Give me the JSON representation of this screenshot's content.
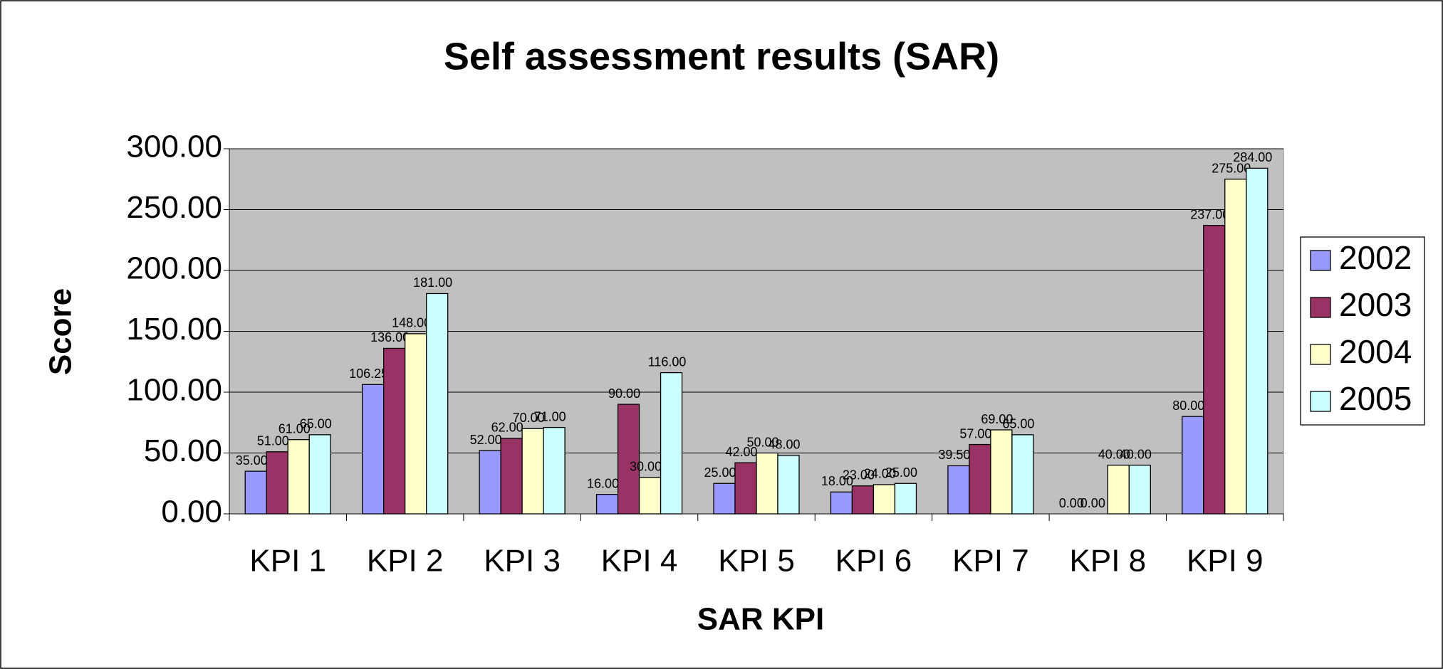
{
  "chart_data": {
    "type": "bar",
    "title": "Self assessment results (SAR)",
    "x_label": "SAR KPI",
    "y_label": "Score",
    "categories": [
      "KPI 1",
      "KPI 2",
      "KPI 3",
      "KPI 4",
      "KPI 5",
      "KPI 6",
      "KPI 7",
      "KPI 8",
      "KPI 9"
    ],
    "series": [
      {
        "name": "2002",
        "color": "#9999ff",
        "values": [
          35,
          106.25,
          52,
          16,
          25,
          18,
          39.5,
          0,
          80
        ],
        "value_labels": [
          "35.00",
          "106.25",
          "52.00",
          "16.00",
          "25.00",
          "18.00",
          "39.50",
          "0.00",
          "80.00"
        ]
      },
      {
        "name": "2003",
        "color": "#993366",
        "values": [
          51,
          136,
          62,
          90,
          42,
          23,
          57,
          0,
          237
        ],
        "value_labels": [
          "51.00",
          "136.00",
          "62.00",
          "90.00",
          "42.00",
          "23.00",
          "57.00",
          "0.00",
          "237.00"
        ]
      },
      {
        "name": "2004",
        "color": "#ffffcc",
        "values": [
          61,
          148,
          70,
          30,
          50,
          24,
          69,
          40,
          275
        ],
        "value_labels": [
          "61.00",
          "148.00",
          "70.00",
          "30.00",
          "50.00",
          "24.00",
          "69.00",
          "40.00",
          "275.00"
        ]
      },
      {
        "name": "2005",
        "color": "#ccffff",
        "values": [
          65,
          181,
          71,
          116,
          48,
          25,
          65,
          40,
          284
        ],
        "value_labels": [
          "65.00",
          "181.00",
          "71.00",
          "116.00",
          "48.00",
          "25.00",
          "65.00",
          "40.00",
          "284.00"
        ]
      }
    ],
    "ylim": [
      0,
      300
    ],
    "yticks": [
      {
        "value": 0,
        "label": "0.00"
      },
      {
        "value": 50,
        "label": "50.00"
      },
      {
        "value": 100,
        "label": "100.00"
      },
      {
        "value": 150,
        "label": "150.00"
      },
      {
        "value": 200,
        "label": "200.00"
      },
      {
        "value": 250,
        "label": "250.00"
      },
      {
        "value": 300,
        "label": "300.00"
      }
    ],
    "grid": true,
    "legend": "right",
    "plot_background": "#c0c0c0"
  }
}
